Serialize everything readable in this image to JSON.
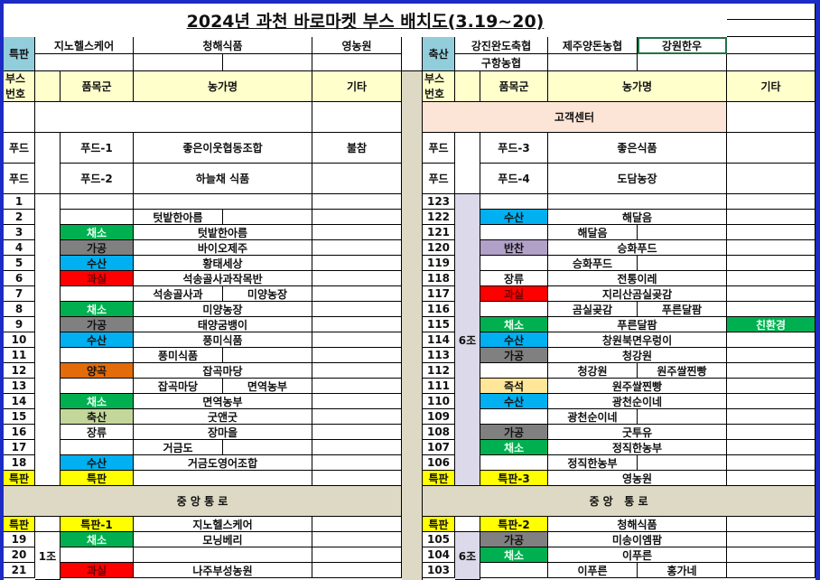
{
  "title": "2024년 과천 바로마켓 부스 배치도(3.19~20)",
  "colors": {
    "frame": "#1c2bc4",
    "header_bg": "#ffffcc",
    "special_label_bg": "#92cddc",
    "customer_center_bg": "#fce4d6",
    "aisle_bg": "#ddd9c4",
    "group_bg": "#dcdaea",
    "special_yellow": "#ffff00",
    "채소": "#00b050",
    "가공": "#808080",
    "수산": "#00b0f0",
    "과실": "#ff0000",
    "양곡": "#e26b0a",
    "축산": "#c4d79b",
    "반찬": "#b1a0c7",
    "즉석": "#ffe699",
    "특판": "#ffff00",
    "친환경": "#00b050"
  },
  "top_left": {
    "label": "특판",
    "row1": [
      "지노헬스케어",
      "청해식품",
      "영농원"
    ]
  },
  "top_right": {
    "label": "축산",
    "row1": [
      "강진완도축협",
      "제주양돈농협",
      "강원한우"
    ],
    "row2": [
      "구항농협"
    ]
  },
  "headers": {
    "booth_no": "부스\n번호",
    "category": "품목군",
    "farm": "농가명",
    "note": "기타"
  },
  "customer_center": "고객센터",
  "left": {
    "food": [
      {
        "no": "푸드",
        "category": "푸드-1",
        "farm": "좋은이웃협동조합",
        "note": "불참"
      },
      {
        "no": "푸드",
        "category": "푸드-2",
        "farm": "하늘채 식품",
        "note": ""
      }
    ],
    "rows": [
      {
        "no": "1",
        "category": "",
        "farm": ""
      },
      {
        "no": "2",
        "category": "",
        "split": [
          "텃밭한아름",
          ""
        ]
      },
      {
        "no": "3",
        "category": "채소",
        "farm": "텃밭한아름"
      },
      {
        "no": "4",
        "category": "가공",
        "farm": "바이오제주"
      },
      {
        "no": "5",
        "category": "수산",
        "farm": "황태세상"
      },
      {
        "no": "6",
        "category": "과실",
        "farm": "석송골사과작목반"
      },
      {
        "no": "7",
        "category": "",
        "split": [
          "석송골사과",
          "미양농장"
        ]
      },
      {
        "no": "8",
        "category": "채소",
        "farm": "미양농장"
      },
      {
        "no": "9",
        "category": "가공",
        "farm": "태양굼뱅이"
      },
      {
        "no": "10",
        "category": "수산",
        "farm": "풍미식품"
      },
      {
        "no": "11",
        "category": "",
        "split": [
          "풍미식품",
          ""
        ]
      },
      {
        "no": "12",
        "category": "양곡",
        "farm": "잡곡마당"
      },
      {
        "no": "13",
        "category": "",
        "split": [
          "잡곡마당",
          "면역농부"
        ]
      },
      {
        "no": "14",
        "category": "채소",
        "farm": "면역농부"
      },
      {
        "no": "15",
        "category": "축산",
        "farm": "굿앤굿"
      },
      {
        "no": "16",
        "category": "장류",
        "farm": "장마을"
      },
      {
        "no": "17",
        "category": "",
        "split": [
          "거금도",
          ""
        ]
      },
      {
        "no": "18",
        "category": "수산",
        "farm": "거금도영어조합"
      },
      {
        "no": "특판",
        "category": "특판",
        "farm": ""
      }
    ],
    "group": "",
    "aisle": "중 앙 통 로",
    "rows2": [
      {
        "no": "특판",
        "category": "특판-1",
        "farm": "지노헬스케어"
      },
      {
        "no": "19",
        "category": "채소",
        "farm": "모닝베리"
      },
      {
        "no": "20",
        "category": "",
        "farm": ""
      },
      {
        "no": "21",
        "category": "과실",
        "farm": "나주부성농원"
      }
    ],
    "group2": "1조"
  },
  "right": {
    "food": [
      {
        "no": "푸드",
        "category": "푸드-3",
        "farm": "좋은식품",
        "note": ""
      },
      {
        "no": "푸드",
        "category": "푸드-4",
        "farm": "도담농장",
        "note": ""
      }
    ],
    "rows": [
      {
        "no": "123",
        "category": "",
        "farm": ""
      },
      {
        "no": "122",
        "category": "수산",
        "farm": "해달음"
      },
      {
        "no": "121",
        "category": "",
        "split": [
          "해달음",
          ""
        ]
      },
      {
        "no": "120",
        "category": "반찬",
        "farm": "승화푸드"
      },
      {
        "no": "119",
        "category": "",
        "split": [
          "승화푸드",
          ""
        ]
      },
      {
        "no": "118",
        "category": "장류",
        "farm": "전통이레"
      },
      {
        "no": "117",
        "category": "과실",
        "farm": "지리산곰실곶감"
      },
      {
        "no": "116",
        "category": "",
        "split": [
          "곰실곶감",
          "푸른달팜"
        ]
      },
      {
        "no": "115",
        "category": "채소",
        "farm": "푸른달팜",
        "note": "친환경"
      },
      {
        "no": "114",
        "category": "수산",
        "farm": "창원북면우렁이"
      },
      {
        "no": "113",
        "category": "가공",
        "farm": "청강원"
      },
      {
        "no": "112",
        "category": "",
        "split": [
          "청강원",
          "원주쌀찐빵"
        ]
      },
      {
        "no": "111",
        "category": "즉석",
        "farm": "원주쌀찐빵"
      },
      {
        "no": "110",
        "category": "수산",
        "farm": "광천순이네"
      },
      {
        "no": "109",
        "category": "",
        "split": [
          "광천순이네",
          ""
        ]
      },
      {
        "no": "108",
        "category": "가공",
        "farm": "굿투유"
      },
      {
        "no": "107",
        "category": "채소",
        "farm": "정직한농부"
      },
      {
        "no": "106",
        "category": "",
        "split": [
          "정직한농부",
          ""
        ]
      },
      {
        "no": "특판",
        "category": "특판-3",
        "farm": "영농원"
      }
    ],
    "group": "6조",
    "aisle": "중 앙   통 로",
    "rows2": [
      {
        "no": "특판",
        "category": "특판-2",
        "farm": "청해식품"
      },
      {
        "no": "105",
        "category": "가공",
        "farm": "미송이엠팜"
      },
      {
        "no": "104",
        "category": "채소",
        "farm": "이푸른"
      },
      {
        "no": "103",
        "category": "",
        "split": [
          "이푸른",
          "홍가네"
        ]
      }
    ],
    "group2": "6조"
  }
}
